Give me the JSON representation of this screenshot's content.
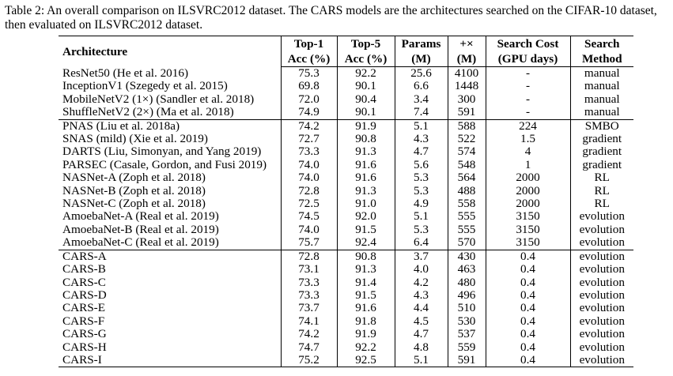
{
  "caption": "Table 2: An overall comparison on ILSVRC2012 dataset. The CARS models are the architectures searched on the CIFAR-10 dataset, then evaluated on ILSVRC2012 dataset.",
  "headers": {
    "architecture": "Architecture",
    "top1_line1": "Top-1",
    "top1_line2": "Acc (%)",
    "top5_line1": "Top-5",
    "top5_line2": "Acc (%)",
    "params_line1": "Params",
    "params_line2": "(M)",
    "ops_line1": "+×",
    "ops_line2": "(M)",
    "cost_line1": "Search Cost",
    "cost_line2": "(GPU days)",
    "method_line1": "Search",
    "method_line2": "Method"
  },
  "rows": [
    {
      "arch": "ResNet50 (He et al. 2016)",
      "top1": "75.3",
      "top5": "92.2",
      "params": "25.6",
      "ops": "4100",
      "cost": "-",
      "method": "manual"
    },
    {
      "arch": "InceptionV1 (Szegedy et al. 2015)",
      "top1": "69.8",
      "top5": "90.1",
      "params": "6.6",
      "ops": "1448",
      "cost": "-",
      "method": "manual"
    },
    {
      "arch": "MobileNetV2 (1×) (Sandler et al. 2018)",
      "top1": "72.0",
      "top5": "90.4",
      "params": "3.4",
      "ops": "300",
      "cost": "-",
      "method": "manual"
    },
    {
      "arch": "ShuffleNetV2 (2×) (Ma et al. 2018)",
      "top1": "74.9",
      "top5": "90.1",
      "params": "7.4",
      "ops": "591",
      "cost": "-",
      "method": "manual"
    },
    {
      "arch": "PNAS (Liu et al. 2018a)",
      "top1": "74.2",
      "top5": "91.9",
      "params": "5.1",
      "ops": "588",
      "cost": "224",
      "method": "SMBO"
    },
    {
      "arch": "SNAS (mild) (Xie et al. 2019)",
      "top1": "72.7",
      "top5": "90.8",
      "params": "4.3",
      "ops": "522",
      "cost": "1.5",
      "method": "gradient"
    },
    {
      "arch": "DARTS (Liu, Simonyan, and Yang 2019)",
      "top1": "73.3",
      "top5": "91.3",
      "params": "4.7",
      "ops": "574",
      "cost": "4",
      "method": "gradient"
    },
    {
      "arch": "PARSEC (Casale, Gordon, and Fusi 2019)",
      "top1": "74.0",
      "top5": "91.6",
      "params": "5.6",
      "ops": "548",
      "cost": "1",
      "method": "gradient"
    },
    {
      "arch": "NASNet-A (Zoph et al. 2018)",
      "top1": "74.0",
      "top5": "91.6",
      "params": "5.3",
      "ops": "564",
      "cost": "2000",
      "method": "RL"
    },
    {
      "arch": "NASNet-B (Zoph et al. 2018)",
      "top1": "72.8",
      "top5": "91.3",
      "params": "5.3",
      "ops": "488",
      "cost": "2000",
      "method": "RL"
    },
    {
      "arch": "NASNet-C (Zoph et al. 2018)",
      "top1": "72.5",
      "top5": "91.0",
      "params": "4.9",
      "ops": "558",
      "cost": "2000",
      "method": "RL"
    },
    {
      "arch": "AmoebaNet-A (Real et al. 2019)",
      "top1": "74.5",
      "top5": "92.0",
      "params": "5.1",
      "ops": "555",
      "cost": "3150",
      "method": "evolution"
    },
    {
      "arch": "AmoebaNet-B (Real et al. 2019)",
      "top1": "74.0",
      "top5": "91.5",
      "params": "5.3",
      "ops": "555",
      "cost": "3150",
      "method": "evolution"
    },
    {
      "arch": "AmoebaNet-C (Real et al. 2019)",
      "top1": "75.7",
      "top5": "92.4",
      "params": "6.4",
      "ops": "570",
      "cost": "3150",
      "method": "evolution"
    },
    {
      "arch": "CARS-A",
      "top1": "72.8",
      "top5": "90.8",
      "params": "3.7",
      "ops": "430",
      "cost": "0.4",
      "method": "evolution"
    },
    {
      "arch": "CARS-B",
      "top1": "73.1",
      "top5": "91.3",
      "params": "4.0",
      "ops": "463",
      "cost": "0.4",
      "method": "evolution"
    },
    {
      "arch": "CARS-C",
      "top1": "73.3",
      "top5": "91.4",
      "params": "4.2",
      "ops": "480",
      "cost": "0.4",
      "method": "evolution"
    },
    {
      "arch": "CARS-D",
      "top1": "73.3",
      "top5": "91.5",
      "params": "4.3",
      "ops": "496",
      "cost": "0.4",
      "method": "evolution"
    },
    {
      "arch": "CARS-E",
      "top1": "73.7",
      "top5": "91.6",
      "params": "4.4",
      "ops": "510",
      "cost": "0.4",
      "method": "evolution"
    },
    {
      "arch": "CARS-F",
      "top1": "74.1",
      "top5": "91.8",
      "params": "4.5",
      "ops": "530",
      "cost": "0.4",
      "method": "evolution"
    },
    {
      "arch": "CARS-G",
      "top1": "74.2",
      "top5": "91.9",
      "params": "4.7",
      "ops": "537",
      "cost": "0.4",
      "method": "evolution"
    },
    {
      "arch": "CARS-H",
      "top1": "74.7",
      "top5": "92.2",
      "params": "4.8",
      "ops": "559",
      "cost": "0.4",
      "method": "evolution"
    },
    {
      "arch": "CARS-I",
      "top1": "75.2",
      "top5": "92.5",
      "params": "5.1",
      "ops": "591",
      "cost": "0.4",
      "method": "evolution"
    }
  ],
  "group_starts": [
    4,
    14
  ]
}
